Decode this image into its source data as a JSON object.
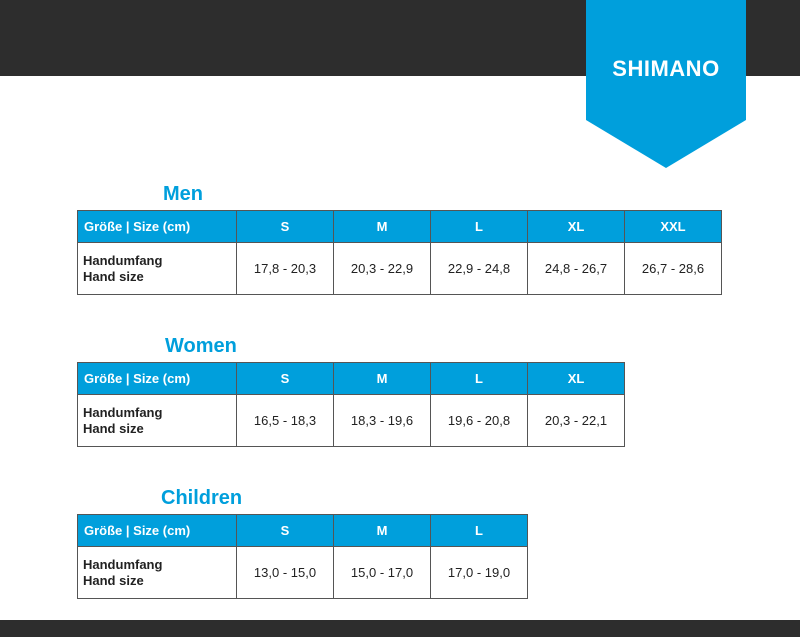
{
  "brand": {
    "logo": "SHIMANO",
    "color": "#009fdc"
  },
  "header_label": "Größe | Size (cm)",
  "row_label": [
    "Handumfang",
    "Hand size"
  ],
  "sections": [
    {
      "title": "Men",
      "sizes": [
        "S",
        "M",
        "L",
        "XL",
        "XXL"
      ],
      "values": [
        "17,8 - 20,3",
        "20,3 - 22,9",
        "22,9 - 24,8",
        "24,8 - 26,7",
        "26,7 - 28,6"
      ]
    },
    {
      "title": "Women",
      "sizes": [
        "S",
        "M",
        "L",
        "XL"
      ],
      "values": [
        "16,5 - 18,3",
        "18,3 - 19,6",
        "19,6 - 20,8",
        "20,3 - 22,1"
      ]
    },
    {
      "title": "Children",
      "sizes": [
        "S",
        "M",
        "L"
      ],
      "values": [
        "13,0 - 15,0",
        "15,0 - 17,0",
        "17,0 - 19,0"
      ]
    }
  ]
}
